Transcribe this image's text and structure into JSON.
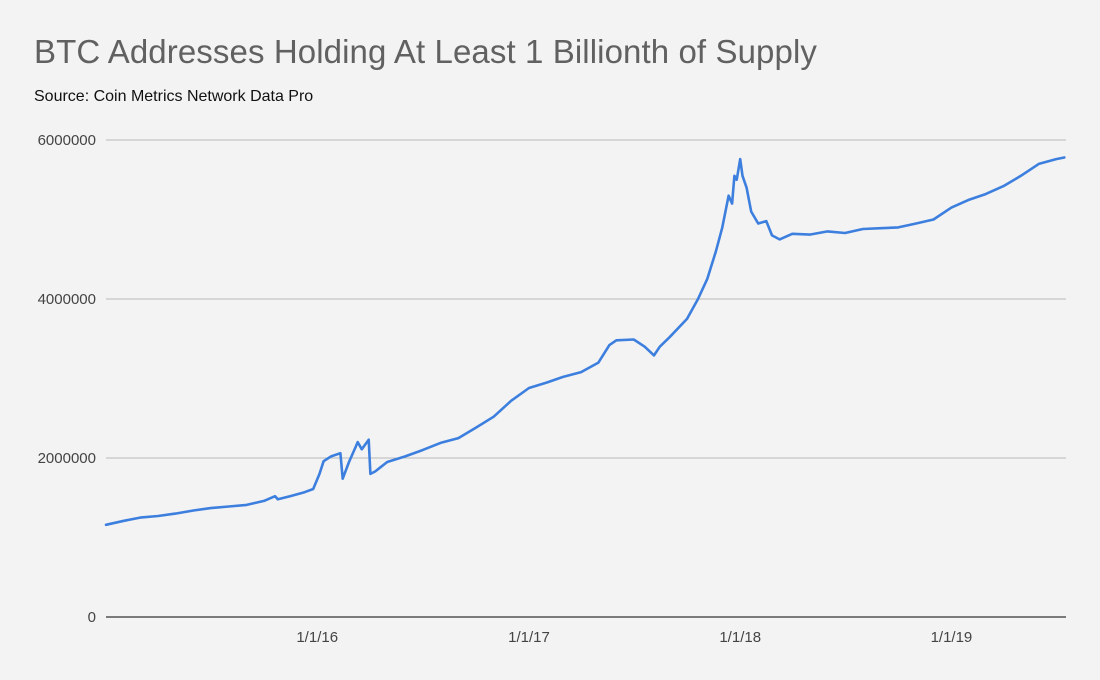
{
  "chart_data": {
    "type": "line",
    "title": "BTC Addresses Holding At Least 1 Billionth of Supply",
    "subtitle": "Source: Coin Metrics Network Data Pro",
    "xlabel": "",
    "ylabel": "",
    "ylim": [
      0,
      6000000
    ],
    "yticks": [
      "0",
      "2000000",
      "4000000",
      "6000000"
    ],
    "xticks": [
      "1/1/16",
      "1/1/17",
      "1/1/18",
      "1/1/19"
    ],
    "grid": true,
    "legend": "none",
    "line_color": "#3d7fde",
    "series": [
      {
        "values": [
          [
            "2015-01-01",
            1160000
          ],
          [
            "2015-02-01",
            1210000
          ],
          [
            "2015-03-01",
            1250000
          ],
          [
            "2015-04-01",
            1270000
          ],
          [
            "2015-05-01",
            1300000
          ],
          [
            "2015-06-01",
            1340000
          ],
          [
            "2015-07-01",
            1370000
          ],
          [
            "2015-08-01",
            1390000
          ],
          [
            "2015-09-01",
            1410000
          ],
          [
            "2015-10-01",
            1460000
          ],
          [
            "2015-10-20",
            1520000
          ],
          [
            "2015-10-25",
            1480000
          ],
          [
            "2015-11-15",
            1520000
          ],
          [
            "2015-12-10",
            1570000
          ],
          [
            "2015-12-25",
            1610000
          ],
          [
            "2016-01-05",
            1800000
          ],
          [
            "2016-01-12",
            1960000
          ],
          [
            "2016-01-25",
            2020000
          ],
          [
            "2016-02-10",
            2060000
          ],
          [
            "2016-02-14",
            1740000
          ],
          [
            "2016-02-25",
            1950000
          ],
          [
            "2016-03-08",
            2150000
          ],
          [
            "2016-03-11",
            2200000
          ],
          [
            "2016-03-18",
            2110000
          ],
          [
            "2016-03-30",
            2230000
          ],
          [
            "2016-04-02",
            1800000
          ],
          [
            "2016-04-10",
            1830000
          ],
          [
            "2016-05-01",
            1950000
          ],
          [
            "2016-06-01",
            2020000
          ],
          [
            "2016-07-01",
            2100000
          ],
          [
            "2016-08-01",
            2190000
          ],
          [
            "2016-09-01",
            2250000
          ],
          [
            "2016-10-01",
            2380000
          ],
          [
            "2016-11-01",
            2520000
          ],
          [
            "2016-12-01",
            2720000
          ],
          [
            "2017-01-01",
            2880000
          ],
          [
            "2017-02-01",
            2950000
          ],
          [
            "2017-03-01",
            3020000
          ],
          [
            "2017-04-01",
            3080000
          ],
          [
            "2017-05-01",
            3200000
          ],
          [
            "2017-05-20",
            3420000
          ],
          [
            "2017-06-01",
            3480000
          ],
          [
            "2017-07-01",
            3490000
          ],
          [
            "2017-07-20",
            3400000
          ],
          [
            "2017-08-05",
            3290000
          ],
          [
            "2017-08-15",
            3400000
          ],
          [
            "2017-09-01",
            3520000
          ],
          [
            "2017-10-01",
            3750000
          ],
          [
            "2017-10-20",
            4000000
          ],
          [
            "2017-11-05",
            4250000
          ],
          [
            "2017-11-20",
            4600000
          ],
          [
            "2017-12-01",
            4900000
          ],
          [
            "2017-12-12",
            5300000
          ],
          [
            "2017-12-18",
            5200000
          ],
          [
            "2017-12-22",
            5550000
          ],
          [
            "2017-12-26",
            5500000
          ],
          [
            "2018-01-01",
            5760000
          ],
          [
            "2018-01-05",
            5550000
          ],
          [
            "2018-01-12",
            5400000
          ],
          [
            "2018-01-20",
            5100000
          ],
          [
            "2018-02-01",
            4950000
          ],
          [
            "2018-02-15",
            4980000
          ],
          [
            "2018-02-25",
            4800000
          ],
          [
            "2018-03-10",
            4750000
          ],
          [
            "2018-04-01",
            4820000
          ],
          [
            "2018-05-01",
            4810000
          ],
          [
            "2018-06-01",
            4850000
          ],
          [
            "2018-07-01",
            4830000
          ],
          [
            "2018-08-01",
            4880000
          ],
          [
            "2018-09-01",
            4890000
          ],
          [
            "2018-10-01",
            4900000
          ],
          [
            "2018-11-01",
            4950000
          ],
          [
            "2018-12-01",
            5000000
          ],
          [
            "2019-01-01",
            5150000
          ],
          [
            "2019-02-01",
            5250000
          ],
          [
            "2019-03-01",
            5320000
          ],
          [
            "2019-04-01",
            5420000
          ],
          [
            "2019-05-01",
            5550000
          ],
          [
            "2019-06-01",
            5700000
          ],
          [
            "2019-07-01",
            5760000
          ],
          [
            "2019-07-15",
            5780000
          ]
        ]
      }
    ]
  }
}
